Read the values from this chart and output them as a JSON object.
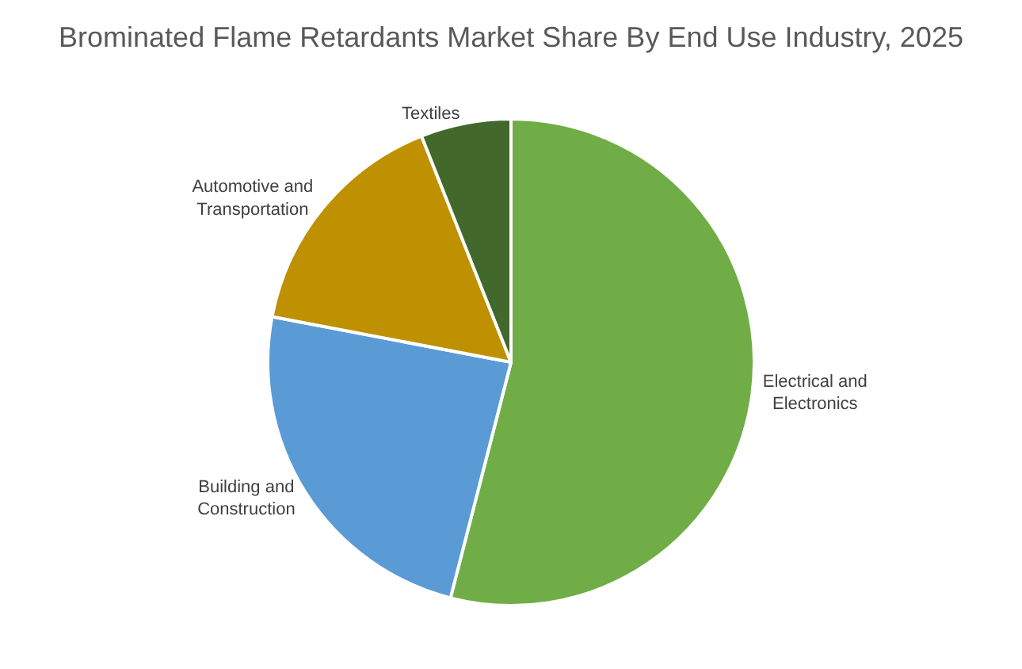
{
  "chart_data": {
    "type": "pie",
    "title": "Brominated Flame Retardants Market Share By End Use Industry, 2025",
    "categories": [
      "Electrical and Electronics",
      "Building and Construction",
      "Automotive and Transportation",
      "Textiles"
    ],
    "values": [
      54,
      24,
      16,
      6
    ],
    "colors": [
      "#70ad47",
      "#5b9bd5",
      "#bf9000",
      "#43682b"
    ],
    "legend": false
  }
}
